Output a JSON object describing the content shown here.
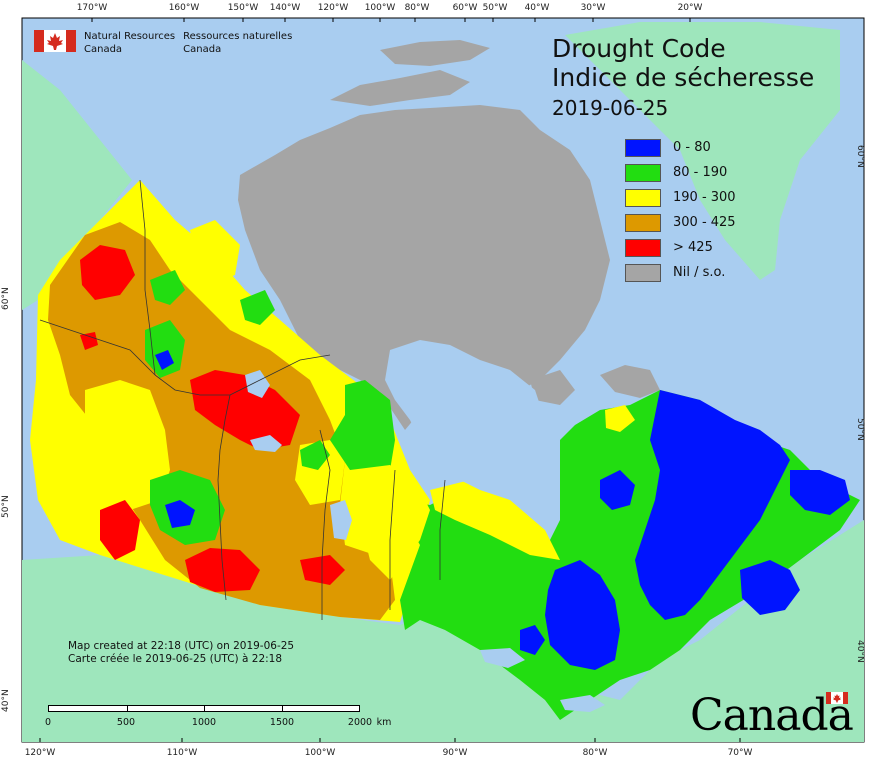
{
  "title": {
    "en": "Drought Code",
    "fr": "Indice de sécheresse",
    "date": "2019-06-25"
  },
  "agency": {
    "en_line1": "Natural Resources",
    "en_line2": "Canada",
    "fr_line1": "Ressources naturelles",
    "fr_line2": "Canada"
  },
  "legend": [
    {
      "label": "0 - 80",
      "color": "#0014ff"
    },
    {
      "label": "80 - 190",
      "color": "#22dd11"
    },
    {
      "label": "190 - 300",
      "color": "#ffff00"
    },
    {
      "label": "300 - 425",
      "color": "#dd9900"
    },
    {
      "label": "> 425",
      "color": "#ff0000"
    },
    {
      "label": "Nil / s.o.",
      "color": "#a5a5a5"
    }
  ],
  "notes": {
    "created_en": "Map created at 22:18 (UTC) on 2019-06-25",
    "created_fr": "Carte créée le 2019-06-25 (UTC) à 22:18"
  },
  "scale": {
    "labels": [
      "0",
      "500",
      "1000",
      "1500",
      "2000"
    ],
    "unit": "km"
  },
  "graticule": {
    "top": [
      "170°W",
      "160°W",
      "150°W",
      "140°W",
      "120°W",
      "100°W",
      "80°W",
      "60°W",
      "50°W",
      "40°W",
      "30°W",
      "20°W"
    ],
    "bottom": [
      "120°W",
      "110°W",
      "100°W",
      "90°W",
      "80°W",
      "70°W"
    ],
    "left": [
      "60°N",
      "50°N",
      "40°N"
    ],
    "right": [
      "60°N",
      "50°N",
      "40°N"
    ]
  },
  "wordmark": "Canada",
  "colors": {
    "ocean": "#a9cdf0",
    "land_outside": "#9ee6bc",
    "nil": "#a5a5a5",
    "class_0_80": "#0014ff",
    "class_80_190": "#22dd11",
    "class_190_300": "#ffff00",
    "class_300_425": "#dd9900",
    "class_425": "#ff0000",
    "flag_red": "#d52b1e"
  }
}
